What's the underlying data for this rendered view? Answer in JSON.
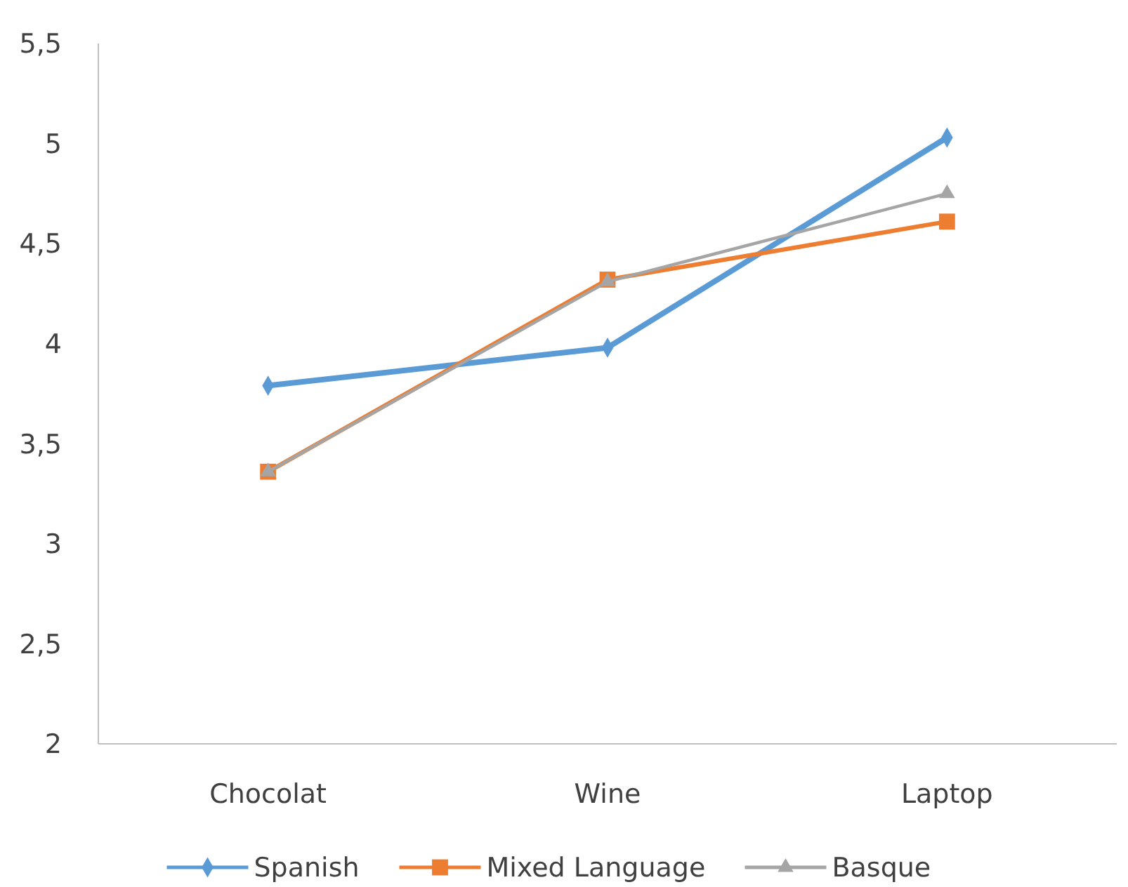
{
  "chart_data": {
    "type": "line",
    "categories": [
      "Chocolat",
      "Wine",
      "Laptop"
    ],
    "series": [
      {
        "name": "Spanish",
        "color": "#5b9bd5",
        "marker": "diamond",
        "values": [
          3.79,
          3.98,
          5.03
        ]
      },
      {
        "name": "Mixed Language",
        "color": "#ed7d31",
        "marker": "square",
        "values": [
          3.36,
          4.32,
          4.61
        ]
      },
      {
        "name": "Basque",
        "color": "#a5a5a5",
        "marker": "triangle",
        "values": [
          3.36,
          4.31,
          4.75
        ]
      }
    ],
    "ylim": [
      2,
      5.5
    ],
    "yticks": [
      {
        "value": 2,
        "label": "2"
      },
      {
        "value": 2.5,
        "label": "2,5"
      },
      {
        "value": 3,
        "label": "3"
      },
      {
        "value": 3.5,
        "label": "3,5"
      },
      {
        "value": 4,
        "label": "4"
      },
      {
        "value": 4.5,
        "label": "4,5"
      },
      {
        "value": 5,
        "label": "5"
      },
      {
        "value": 5.5,
        "label": "5,5"
      }
    ],
    "grid": false,
    "legend": "bottom",
    "line_style": "solid"
  }
}
